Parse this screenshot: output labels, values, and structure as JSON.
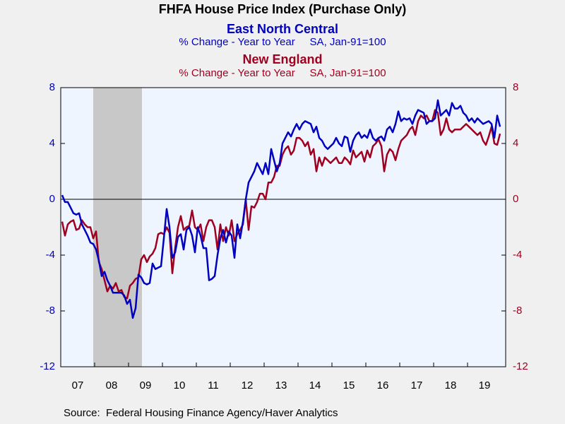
{
  "chart_data": {
    "type": "line",
    "title": "FHFA House Price Index (Purchase Only)",
    "source": "Source:  Federal Housing Finance Agency/Haver Analytics",
    "categories": [
      null,
      null,
      null,
      null,
      null,
      null,
      "07",
      null,
      null,
      null,
      null,
      null,
      null,
      null,
      null,
      null,
      null,
      null,
      "08",
      null,
      null,
      null,
      null,
      null,
      null,
      null,
      null,
      null,
      null,
      null,
      "09",
      null,
      null,
      null,
      null,
      null,
      null,
      null,
      null,
      null,
      null,
      null,
      "10",
      null,
      null,
      null,
      null,
      null,
      null,
      null,
      null,
      null,
      null,
      null,
      "11",
      null,
      null,
      null,
      null,
      null,
      null,
      null,
      null,
      null,
      null,
      null,
      "12",
      null,
      null,
      null,
      null,
      null,
      null,
      null,
      null,
      null,
      null,
      null,
      "13",
      null,
      null,
      null,
      null,
      null,
      null,
      null,
      null,
      null,
      null,
      null,
      "14",
      null,
      null,
      null,
      null,
      null,
      null,
      null,
      null,
      null,
      null,
      null,
      "15",
      null,
      null,
      null,
      null,
      null,
      null,
      null,
      null,
      null,
      null,
      null,
      "16",
      null,
      null,
      null,
      null,
      null,
      null,
      null,
      null,
      null,
      null,
      null,
      "17",
      null,
      null,
      null,
      null,
      null,
      null,
      null,
      null,
      null,
      null,
      null,
      "18",
      null,
      null,
      null,
      null,
      null,
      null,
      null,
      null,
      null,
      null,
      null,
      "19",
      null,
      null,
      null,
      null,
      null
    ],
    "series": [
      {
        "name": "East North Central",
        "subtitle": "% Change - Year to Year     SA, Jan-91=100",
        "color": "#0000c0",
        "axis": "y",
        "values": [
          0.3,
          -0.2,
          -0.2,
          -0.6,
          -1.0,
          -1.1,
          -1.0,
          -1.8,
          -2.2,
          -2.6,
          -3.1,
          -3.2,
          -3.6,
          -4.4,
          -5.5,
          -5.2,
          -5.8,
          -6.2,
          -6.7,
          -6.7,
          -6.7,
          -6.7,
          -6.9,
          -7.5,
          -7.2,
          -8.5,
          -7.8,
          -5.4,
          -5.6,
          -6.0,
          -6.1,
          -6.0,
          -4.6,
          -5.0,
          -4.9,
          -4.8,
          -2.8,
          -0.7,
          -2.0,
          -4.2,
          -3.8,
          -2.7,
          -2.5,
          -3.6,
          -2.2,
          -2.0,
          -2.6,
          -3.8,
          -2.0,
          -2.6,
          -3.5,
          -3.5,
          -5.8,
          -5.7,
          -5.5,
          -4.0,
          -2.8,
          -2.2,
          -3.1,
          -2.3,
          -2.6,
          -4.2,
          -1.8,
          -2.8,
          -1.6,
          0.0,
          1.2,
          1.6,
          2.0,
          2.6,
          2.2,
          1.8,
          2.6,
          1.8,
          3.6,
          2.8,
          2.0,
          2.6,
          4.0,
          4.4,
          4.8,
          4.5,
          5.0,
          5.4,
          5.0,
          5.4,
          5.6,
          5.5,
          5.4,
          4.8,
          5.2,
          4.4,
          4.2,
          3.8,
          3.6,
          3.8,
          4.0,
          4.4,
          4.0,
          3.8,
          4.5,
          4.4,
          3.4,
          4.2,
          4.6,
          4.8,
          4.4,
          4.6,
          4.4,
          5.0,
          4.4,
          4.2,
          4.4,
          4.5,
          4.2,
          5.0,
          5.2,
          4.8,
          5.4,
          6.3,
          5.6,
          5.8,
          5.7,
          5.8,
          5.4,
          6.0,
          6.4,
          6.3,
          6.2,
          5.4,
          5.6,
          5.6,
          5.8,
          7.1,
          6.0,
          6.2,
          6.4,
          6.0,
          6.9,
          6.5,
          6.5,
          6.7,
          6.2,
          6.0,
          5.6,
          5.8,
          5.5,
          5.8,
          5.6,
          5.4,
          5.5,
          5.6,
          5.4,
          4.4,
          6.0,
          5.2
        ]
      },
      {
        "name": "New England",
        "subtitle": "% Change - Year to Year     SA, Jan-91=100",
        "color": "#a00020",
        "axis": "y2",
        "values": [
          -1.6,
          -2.6,
          -1.8,
          -1.6,
          -1.5,
          -2.2,
          -2.1,
          -1.5,
          -1.8,
          -2.0,
          -2.0,
          -2.8,
          -2.3,
          -4.5,
          -5.0,
          -5.8,
          -6.6,
          -6.2,
          -6.4,
          -6.0,
          -6.6,
          -6.5,
          -7.0,
          -7.1,
          -6.2,
          -6.0,
          -5.7,
          -5.6,
          -4.3,
          -4.0,
          -4.5,
          -4.1,
          -3.9,
          -3.5,
          -2.5,
          -2.4,
          -2.5,
          -2.0,
          -2.4,
          -5.3,
          -3.5,
          -2.0,
          -1.2,
          -2.2,
          -2.0,
          -1.9,
          -0.8,
          -2.0,
          -2.2,
          -1.8,
          -3.0,
          -2.0,
          -1.5,
          -1.5,
          -2.0,
          -3.6,
          -1.8,
          -3.0,
          -2.0,
          -2.6,
          -1.5,
          -3.0,
          -2.5,
          -2.2,
          -1.8,
          0.0,
          -2.2,
          -0.5,
          -0.6,
          -0.2,
          0.4,
          0.4,
          0.0,
          1.2,
          1.2,
          1.6,
          2.4,
          2.4,
          3.2,
          3.6,
          3.8,
          3.2,
          3.5,
          4.4,
          4.4,
          4.2,
          3.8,
          4.1,
          3.2,
          3.6,
          2.0,
          3.0,
          2.4,
          3.0,
          2.8,
          2.6,
          2.8,
          3.0,
          2.6,
          2.6,
          3.0,
          2.8,
          2.5,
          3.5,
          3.0,
          3.2,
          3.4,
          2.7,
          3.5,
          3.0,
          3.8,
          4.0,
          4.3,
          3.8,
          2.0,
          3.2,
          3.6,
          3.4,
          2.8,
          3.6,
          4.2,
          4.4,
          4.6,
          5.0,
          5.2,
          4.6,
          5.6,
          6.0,
          5.8,
          6.0,
          5.6,
          5.6,
          6.4,
          6.2,
          4.6,
          5.0,
          5.8,
          5.0,
          4.8,
          5.0,
          5.0,
          5.0,
          5.2,
          5.4,
          5.2,
          5.0,
          4.8,
          4.6,
          4.8,
          4.2,
          3.9,
          4.5,
          5.2,
          4.0,
          3.9,
          4.7
        ]
      }
    ],
    "ylim": [
      -12,
      8
    ],
    "yticks": [
      8,
      4,
      0,
      -4,
      -8,
      -12
    ],
    "y2lim": [
      -12,
      8
    ],
    "y2ticks": [
      8,
      4,
      0,
      -4,
      -8,
      -12
    ],
    "grid": false
  }
}
